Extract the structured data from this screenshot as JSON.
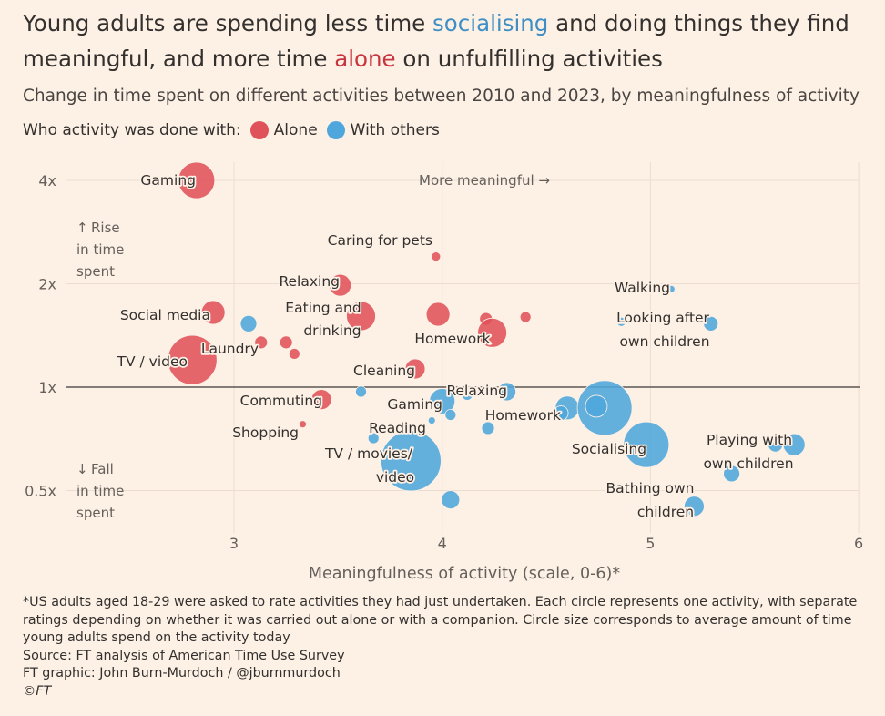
{
  "title": {
    "part1": "Young adults are spending less time ",
    "highlight1": "socialising",
    "part2": " and doing things they find meaningful, and more time ",
    "highlight2": "alone",
    "part3": " on unfulfilling activities"
  },
  "subtitle": "Change in time spent on different activities between 2010 and 2023, by meaningfulness of activity",
  "legend": {
    "label": "Who activity was done with:",
    "alone": "Alone",
    "with_others": "With others"
  },
  "colors": {
    "alone": "#e0525a",
    "with_others": "#4fa6dc",
    "background": "#fdf1e6"
  },
  "footnote": {
    "note": "*US adults aged 18-29 were asked to rate activities they had just undertaken. Each circle represents one activity, with separate ratings depending on whether it was carried out alone or with a companion. Circle size corresponds to average amount of time young adults spend on the activity today",
    "source": "Source: FT analysis of American Time Use Survey",
    "graphic": "FT graphic: John Burn-Murdoch / @jburnmurdoch",
    "copyright": "©FT"
  },
  "chart_data": {
    "type": "scatter",
    "xlabel": "Meaningfulness of activity (scale, 0-6)*",
    "ylabel": "",
    "x_ticks": [
      "3",
      "4",
      "5",
      "6"
    ],
    "x_tick_values": [
      3,
      4,
      5,
      6
    ],
    "y_ticks": [
      "4x",
      "2x",
      "1x",
      "0.5x"
    ],
    "y_tick_values": [
      4,
      2,
      1,
      0.5
    ],
    "xlim": [
      2.0,
      6.0
    ],
    "ylim": [
      0.4,
      4.3
    ],
    "y_scale": "log",
    "grid": true,
    "annotations": {
      "top": "More meaningful →",
      "rise_arrow": "↑",
      "rise": [
        "Rise",
        "in time",
        "spent"
      ],
      "fall_arrow": "↓",
      "fall": [
        "Fall",
        "in time",
        "spent"
      ]
    },
    "series": [
      {
        "name": "Alone",
        "points": [
          {
            "label": "Gaming",
            "x": 2.82,
            "y": 4.0,
            "size": 20
          },
          {
            "label": "Caring for pets",
            "x": 3.97,
            "y": 2.4,
            "size": 5
          },
          {
            "label": "Relaxing",
            "x": 3.51,
            "y": 1.98,
            "size": 12
          },
          {
            "label": "Eating and drinking",
            "x": 3.61,
            "y": 1.61,
            "size": 16
          },
          {
            "label": "",
            "x": 3.98,
            "y": 1.63,
            "size": 13
          },
          {
            "label": "",
            "x": 4.21,
            "y": 1.58,
            "size": 7
          },
          {
            "label": "",
            "x": 4.4,
            "y": 1.6,
            "size": 6
          },
          {
            "label": "Homework",
            "x": 4.24,
            "y": 1.44,
            "size": 16
          },
          {
            "label": "Social media",
            "x": 2.9,
            "y": 1.65,
            "size": 13
          },
          {
            "label": "Laundry",
            "x": 3.13,
            "y": 1.35,
            "size": 7
          },
          {
            "label": "",
            "x": 3.25,
            "y": 1.35,
            "size": 7
          },
          {
            "label": "",
            "x": 3.29,
            "y": 1.25,
            "size": 6
          },
          {
            "label": "TV / video",
            "x": 2.8,
            "y": 1.2,
            "size": 27
          },
          {
            "label": "Cleaning",
            "x": 3.87,
            "y": 1.13,
            "size": 11
          },
          {
            "label": "Commuting",
            "x": 3.42,
            "y": 0.92,
            "size": 11
          },
          {
            "label": "Shopping",
            "x": 3.33,
            "y": 0.78,
            "size": 4
          }
        ]
      },
      {
        "name": "With others",
        "points": [
          {
            "label": "Walking",
            "x": 5.1,
            "y": 1.93,
            "size": 4
          },
          {
            "label": "Looking after own children",
            "x": 5.29,
            "y": 1.53,
            "size": 8
          },
          {
            "label": "",
            "x": 4.86,
            "y": 1.55,
            "size": 5
          },
          {
            "label": "",
            "x": 3.07,
            "y": 1.53,
            "size": 9
          },
          {
            "label": "",
            "x": 3.61,
            "y": 0.97,
            "size": 6
          },
          {
            "label": "Gaming",
            "x": 4.0,
            "y": 0.91,
            "size": 14
          },
          {
            "label": "Relaxing",
            "x": 4.31,
            "y": 0.97,
            "size": 10
          },
          {
            "label": "",
            "x": 4.12,
            "y": 0.95,
            "size": 6
          },
          {
            "label": "",
            "x": 4.04,
            "y": 0.83,
            "size": 6
          },
          {
            "label": "Homework",
            "x": 4.6,
            "y": 0.87,
            "size": 13
          },
          {
            "label": "",
            "x": 4.57,
            "y": 0.84,
            "size": 8
          },
          {
            "label": "Socialising",
            "x": 4.78,
            "y": 0.87,
            "size": 30
          },
          {
            "label": "",
            "x": 4.74,
            "y": 0.88,
            "size": 12
          },
          {
            "label": "Reading",
            "x": 3.95,
            "y": 0.8,
            "size": 4
          },
          {
            "label": "",
            "x": 4.22,
            "y": 0.76,
            "size": 7
          },
          {
            "label": "",
            "x": 3.67,
            "y": 0.71,
            "size": 6
          },
          {
            "label": "TV / movies/ video",
            "x": 3.85,
            "y": 0.61,
            "size": 33
          },
          {
            "label": "",
            "x": 4.04,
            "y": 0.47,
            "size": 10
          },
          {
            "label": "Socialising",
            "x": 4.98,
            "y": 0.68,
            "size": 25
          },
          {
            "label": "Playing with own children",
            "x": 5.69,
            "y": 0.68,
            "size": 12
          },
          {
            "label": "",
            "x": 5.6,
            "y": 0.68,
            "size": 8
          },
          {
            "label": "",
            "x": 5.39,
            "y": 0.56,
            "size": 9
          },
          {
            "label": "Bathing own children",
            "x": 5.21,
            "y": 0.45,
            "size": 11
          }
        ]
      }
    ]
  }
}
